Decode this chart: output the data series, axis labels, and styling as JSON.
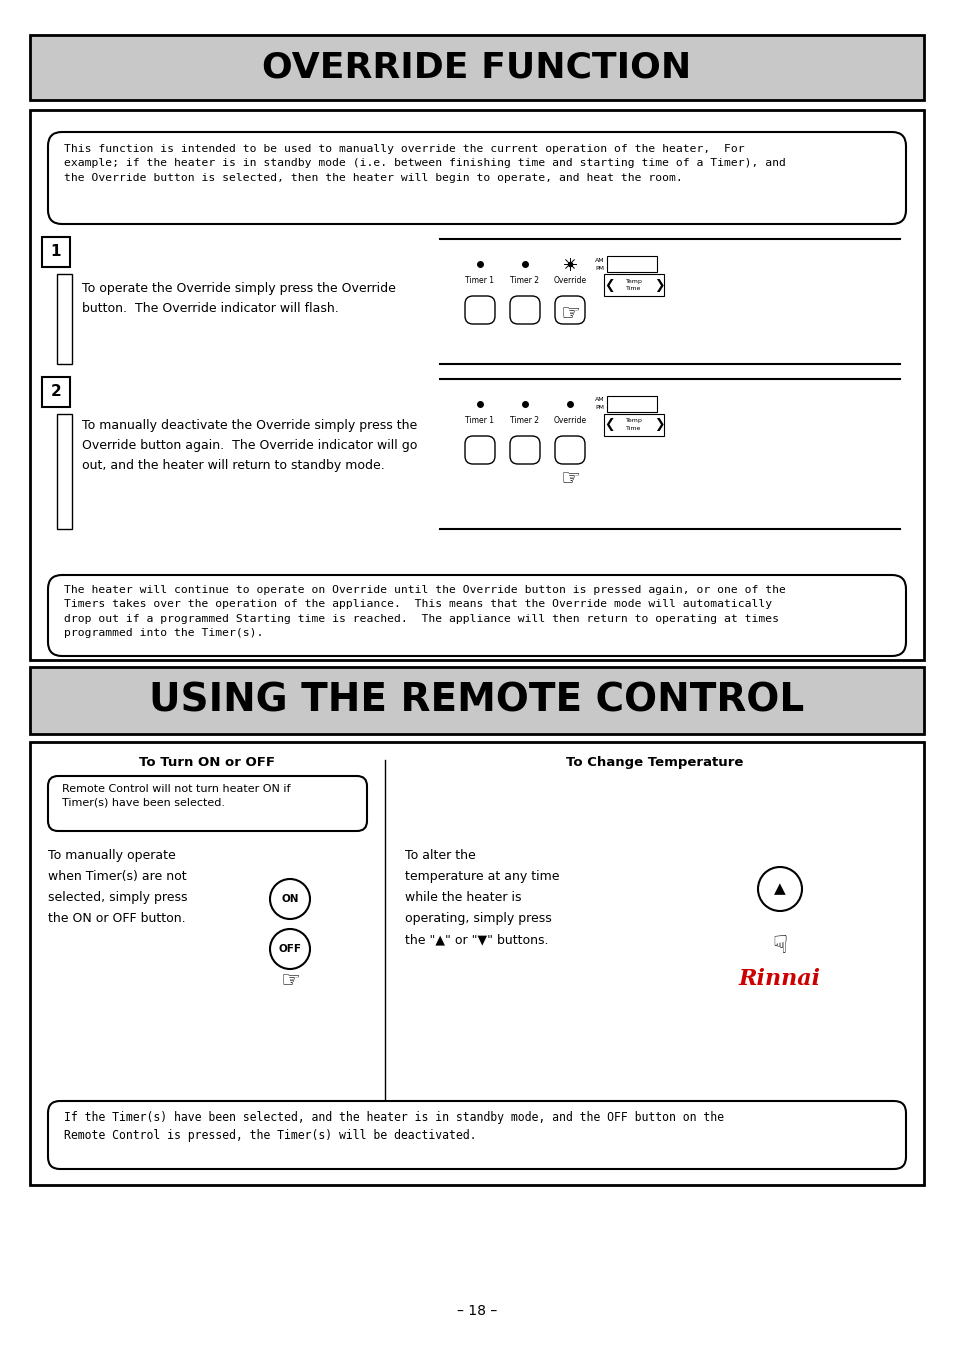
{
  "page_bg": "#ffffff",
  "section1_title": "OVERRIDE FUNCTION",
  "section1_title_bg": "#c8c8c8",
  "section2_title": "USING THE REMOTE CONTROL",
  "section2_title_bg": "#c8c8c8",
  "title_color": "#000000",
  "title_fontsize": 26,
  "title2_fontsize": 28,
  "intro_text1": "This function is intended to be used to manually override the current operation of the heater,  For\nexample; if the heater is in standby mode (i.e. between finishing time and starting time of a Timer), and\nthe Override button is selected, then the heater will begin to operate, and heat the room.",
  "step1_text": "To operate the Override simply press the Override\nbutton.  The Override indicator will flash.",
  "step2_text": "To manually deactivate the Override simply press the\nOverride button again.  The Override indicator will go\nout, and the heater will return to standby mode.",
  "bottom_note1": "The heater will continue to operate on Override until the Override button is pressed again, or one of the\nTimers takes over the operation of the appliance.  This means that the Override mode will automatically\ndrop out if a programmed Starting time is reached.  The appliance will then return to operating at times\nprogrammed into the Timer(s).",
  "remote_col1_title": "To Turn ON or OFF",
  "remote_col1_note": "Remote Control will not turn heater ON if\nTimer(s) have been selected.",
  "remote_col1_text": "To manually operate\nwhen Timer(s) are not\nselected, simply press\nthe ON or OFF button.",
  "remote_col2_title": "To Change Temperature",
  "remote_col2_text": "To alter the\ntemperature at any time\nwhile the heater is\noperating, simply press\nthe \"▲\" or \"▼\" buttons.",
  "bottom_note2": "If the Timer(s) have been selected, and the heater is in standby mode, and the OFF button on the\nRemote Control is pressed, the Timer(s) will be deactivated.",
  "page_number": "– 18 –"
}
